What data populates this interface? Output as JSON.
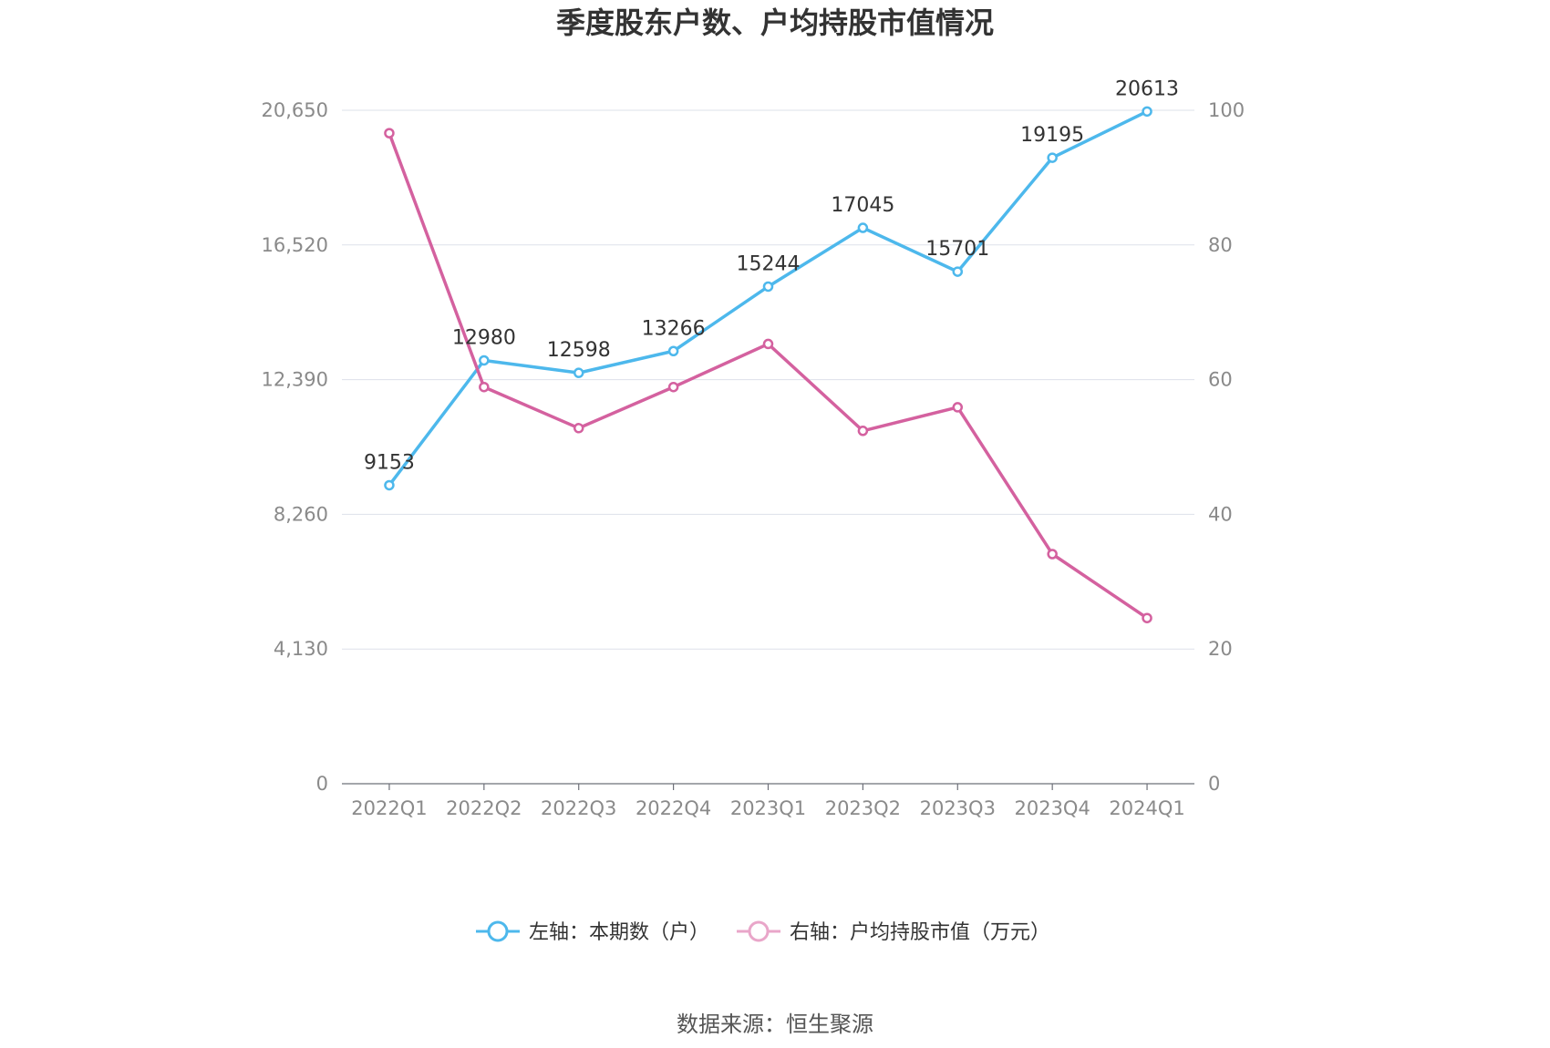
{
  "chart_data": {
    "type": "line",
    "title": "季度股东户数、户均持股市值情况",
    "categories": [
      "2022Q1",
      "2022Q2",
      "2022Q3",
      "2022Q4",
      "2023Q1",
      "2023Q2",
      "2023Q3",
      "2023Q4",
      "2024Q1"
    ],
    "left_axis": {
      "ticks": [
        "0",
        "4,130",
        "8,260",
        "12,390",
        "16,520",
        "20,650"
      ],
      "ylim": [
        0,
        20650
      ]
    },
    "right_axis": {
      "ticks": [
        "0",
        "20",
        "40",
        "60",
        "80",
        "100"
      ],
      "ylim": [
        0,
        100
      ]
    },
    "series": [
      {
        "name": "左轴：本期数（户）",
        "axis": "left",
        "color": "#4db8ec",
        "values": [
          9153,
          12980,
          12598,
          13266,
          15244,
          17045,
          15701,
          19195,
          20613
        ],
        "labels": [
          "9153",
          "12980",
          "12598",
          "13266",
          "15244",
          "17045",
          "15701",
          "19195",
          "20613"
        ]
      },
      {
        "name": "右轴：户均持股市值（万元）",
        "axis": "right",
        "color": "#d4619f",
        "values": [
          96.6,
          58.9,
          52.8,
          58.9,
          65.3,
          52.4,
          55.9,
          34.1,
          24.6
        ]
      }
    ],
    "grid": true,
    "legend_position": "bottom"
  },
  "footer": {
    "source": "数据来源：恒生聚源"
  }
}
